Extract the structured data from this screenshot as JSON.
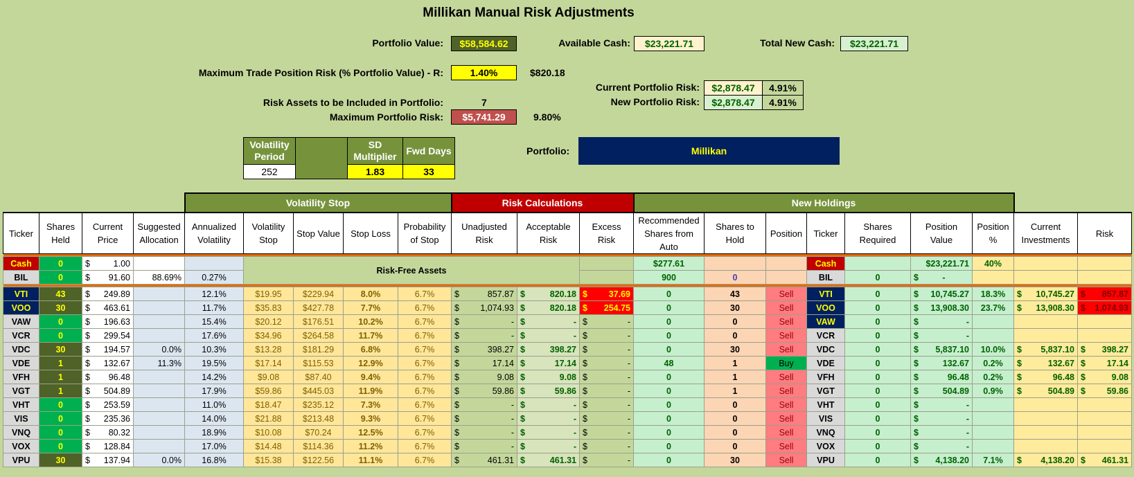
{
  "title": "Millikan Manual Risk Adjustments",
  "portfolio_value_label": "Portfolio Value:",
  "portfolio_value": "$58,584.62",
  "available_cash_label": "Available Cash:",
  "available_cash": "$23,221.71",
  "total_new_cash_label": "Total New Cash:",
  "total_new_cash": "$23,221.71",
  "max_trade_risk_label": "Maximum Trade Position Risk (% Portfolio Value) - R:",
  "max_trade_risk_pct": "1.40%",
  "max_trade_risk_amt": "$820.18",
  "current_portfolio_risk_label": "Current Portfolio Risk:",
  "current_portfolio_risk": "$2,878.47",
  "current_portfolio_risk_pct": "4.91%",
  "new_portfolio_risk_label": "New Portfolio Risk:",
  "new_portfolio_risk": "$2,878.47",
  "new_portfolio_risk_pct": "4.91%",
  "risk_assets_label": "Risk Assets to be Included in Portfolio:",
  "risk_assets": "7",
  "max_portfolio_risk_label": "Maximum Portfolio Risk:",
  "max_portfolio_risk": "$5,741.29",
  "max_portfolio_risk_pct": "9.80%",
  "volatility": {
    "period_label": "Volatility Period",
    "period": "252",
    "sd_label": "SD Multiplier",
    "sd": "1.83",
    "fwd_label": "Fwd Days",
    "fwd": "33"
  },
  "portfolio_label": "Portfolio:",
  "portfolio_name": "Millikan",
  "groups": {
    "volatility_stop": "Volatility Stop",
    "risk_calc": "Risk Calculations",
    "new_holdings": "New Holdings"
  },
  "headers": {
    "ticker": "Ticker",
    "shares_held": "Shares Held",
    "current_price": "Current Price",
    "suggested_alloc": "Suggested Allocation",
    "annualized_vol": "Annualized Volatility",
    "vol_stop": "Volatility Stop",
    "stop_value": "Stop Value",
    "stop_loss": "Stop Loss",
    "prob_stop": "Probability of Stop",
    "unadj_risk": "Unadjusted Risk",
    "accept_risk": "Acceptable Risk",
    "excess_risk": "Excess Risk",
    "rec_shares": "Recommended Shares from Auto",
    "shares_hold": "Shares to Hold",
    "position": "Position",
    "ticker2": "Ticker",
    "shares_req": "Shares Required",
    "pos_value": "Position Value",
    "pos_pct": "Position %",
    "cur_inv": "Current Investments",
    "risk": "Risk"
  },
  "risk_free_label": "Risk-Free Assets",
  "dollar": "$",
  "cash_row": {
    "ticker": "Cash",
    "shares": "0",
    "price": "1.00",
    "rec": "$277.61",
    "ticker2": "Cash",
    "pos_value": "$23,221.71",
    "pos_pct": "40%"
  },
  "bil_row": {
    "ticker": "BIL",
    "shares": "0",
    "price": "91.60",
    "alloc": "88.69%",
    "vol": "0.27%",
    "rec": "900",
    "hold": "0",
    "ticker2": "BIL",
    "req": "0",
    "pos_value": "-"
  },
  "rows": [
    {
      "ticker": "VTI",
      "shares": "43",
      "price": "249.89",
      "alloc": "",
      "vol": "12.1%",
      "vstop": "$19.95",
      "sval": "$229.94",
      "sloss": "8.0%",
      "prob": "6.7%",
      "unadj": "857.87",
      "accept": "820.18",
      "excess": "37.69",
      "rec": "0",
      "hold": "43",
      "pos": "Sell",
      "ticker2": "VTI",
      "req": "0",
      "pval": "10,745.27",
      "ppct": "18.3%",
      "ci": "10,745.27",
      "risk": "857.87"
    },
    {
      "ticker": "VOO",
      "shares": "30",
      "price": "463.61",
      "alloc": "",
      "vol": "11.7%",
      "vstop": "$35.83",
      "sval": "$427.78",
      "sloss": "7.7%",
      "prob": "6.7%",
      "unadj": "1,074.93",
      "accept": "820.18",
      "excess": "254.75",
      "rec": "0",
      "hold": "30",
      "pos": "Sell",
      "ticker2": "VOO",
      "req": "0",
      "pval": "13,908.30",
      "ppct": "23.7%",
      "ci": "13,908.30",
      "risk": "1,074.93"
    },
    {
      "ticker": "VAW",
      "shares": "0",
      "price": "196.63",
      "alloc": "",
      "vol": "15.4%",
      "vstop": "$20.12",
      "sval": "$176.51",
      "sloss": "10.2%",
      "prob": "6.7%",
      "unadj": "-",
      "accept": "-",
      "excess": "-",
      "rec": "0",
      "hold": "0",
      "pos": "Sell",
      "ticker2": "VAW",
      "req": "0",
      "pval": "-",
      "ppct": "",
      "ci": "",
      "risk": ""
    },
    {
      "ticker": "VCR",
      "shares": "0",
      "price": "299.54",
      "alloc": "",
      "vol": "17.6%",
      "vstop": "$34.96",
      "sval": "$264.58",
      "sloss": "11.7%",
      "prob": "6.7%",
      "unadj": "-",
      "accept": "-",
      "excess": "-",
      "rec": "0",
      "hold": "0",
      "pos": "Sell",
      "ticker2": "VCR",
      "req": "0",
      "pval": "-",
      "ppct": "",
      "ci": "",
      "risk": ""
    },
    {
      "ticker": "VDC",
      "shares": "30",
      "price": "194.57",
      "alloc": "0.0%",
      "vol": "10.3%",
      "vstop": "$13.28",
      "sval": "$181.29",
      "sloss": "6.8%",
      "prob": "6.7%",
      "unadj": "398.27",
      "accept": "398.27",
      "excess": "-",
      "rec": "0",
      "hold": "30",
      "pos": "Sell",
      "ticker2": "VDC",
      "req": "0",
      "pval": "5,837.10",
      "ppct": "10.0%",
      "ci": "5,837.10",
      "risk": "398.27"
    },
    {
      "ticker": "VDE",
      "shares": "1",
      "price": "132.67",
      "alloc": "11.3%",
      "vol": "19.5%",
      "vstop": "$17.14",
      "sval": "$115.53",
      "sloss": "12.9%",
      "prob": "6.7%",
      "unadj": "17.14",
      "accept": "17.14",
      "excess": "-",
      "rec": "48",
      "hold": "1",
      "pos": "Buy",
      "ticker2": "VDE",
      "req": "0",
      "pval": "132.67",
      "ppct": "0.2%",
      "ci": "132.67",
      "risk": "17.14"
    },
    {
      "ticker": "VFH",
      "shares": "1",
      "price": "96.48",
      "alloc": "",
      "vol": "14.2%",
      "vstop": "$9.08",
      "sval": "$87.40",
      "sloss": "9.4%",
      "prob": "6.7%",
      "unadj": "9.08",
      "accept": "9.08",
      "excess": "-",
      "rec": "0",
      "hold": "1",
      "pos": "Sell",
      "ticker2": "VFH",
      "req": "0",
      "pval": "96.48",
      "ppct": "0.2%",
      "ci": "96.48",
      "risk": "9.08"
    },
    {
      "ticker": "VGT",
      "shares": "1",
      "price": "504.89",
      "alloc": "",
      "vol": "17.9%",
      "vstop": "$59.86",
      "sval": "$445.03",
      "sloss": "11.9%",
      "prob": "6.7%",
      "unadj": "59.86",
      "accept": "59.86",
      "excess": "-",
      "rec": "0",
      "hold": "1",
      "pos": "Sell",
      "ticker2": "VGT",
      "req": "0",
      "pval": "504.89",
      "ppct": "0.9%",
      "ci": "504.89",
      "risk": "59.86"
    },
    {
      "ticker": "VHT",
      "shares": "0",
      "price": "253.59",
      "alloc": "",
      "vol": "11.0%",
      "vstop": "$18.47",
      "sval": "$235.12",
      "sloss": "7.3%",
      "prob": "6.7%",
      "unadj": "-",
      "accept": "-",
      "excess": "-",
      "rec": "0",
      "hold": "0",
      "pos": "Sell",
      "ticker2": "VHT",
      "req": "0",
      "pval": "-",
      "ppct": "",
      "ci": "",
      "risk": ""
    },
    {
      "ticker": "VIS",
      "shares": "0",
      "price": "235.36",
      "alloc": "",
      "vol": "14.0%",
      "vstop": "$21.88",
      "sval": "$213.48",
      "sloss": "9.3%",
      "prob": "6.7%",
      "unadj": "-",
      "accept": "-",
      "excess": "-",
      "rec": "0",
      "hold": "0",
      "pos": "Sell",
      "ticker2": "VIS",
      "req": "0",
      "pval": "-",
      "ppct": "",
      "ci": "",
      "risk": ""
    },
    {
      "ticker": "VNQ",
      "shares": "0",
      "price": "80.32",
      "alloc": "",
      "vol": "18.9%",
      "vstop": "$10.08",
      "sval": "$70.24",
      "sloss": "12.5%",
      "prob": "6.7%",
      "unadj": "-",
      "accept": "-",
      "excess": "-",
      "rec": "0",
      "hold": "0",
      "pos": "Sell",
      "ticker2": "VNQ",
      "req": "0",
      "pval": "-",
      "ppct": "",
      "ci": "",
      "risk": ""
    },
    {
      "ticker": "VOX",
      "shares": "0",
      "price": "128.84",
      "alloc": "",
      "vol": "17.0%",
      "vstop": "$14.48",
      "sval": "$114.36",
      "sloss": "11.2%",
      "prob": "6.7%",
      "unadj": "-",
      "accept": "-",
      "excess": "-",
      "rec": "0",
      "hold": "0",
      "pos": "Sell",
      "ticker2": "VOX",
      "req": "0",
      "pval": "-",
      "ppct": "",
      "ci": "",
      "risk": ""
    },
    {
      "ticker": "VPU",
      "shares": "30",
      "price": "137.94",
      "alloc": "0.0%",
      "vol": "16.8%",
      "vstop": "$15.38",
      "sval": "$122.56",
      "sloss": "11.1%",
      "prob": "6.7%",
      "unadj": "461.31",
      "accept": "461.31",
      "excess": "-",
      "rec": "0",
      "hold": "30",
      "pos": "Sell",
      "ticker2": "VPU",
      "req": "0",
      "pval": "4,138.20",
      "ppct": "7.1%",
      "ci": "4,138.20",
      "risk": "461.31"
    }
  ]
}
